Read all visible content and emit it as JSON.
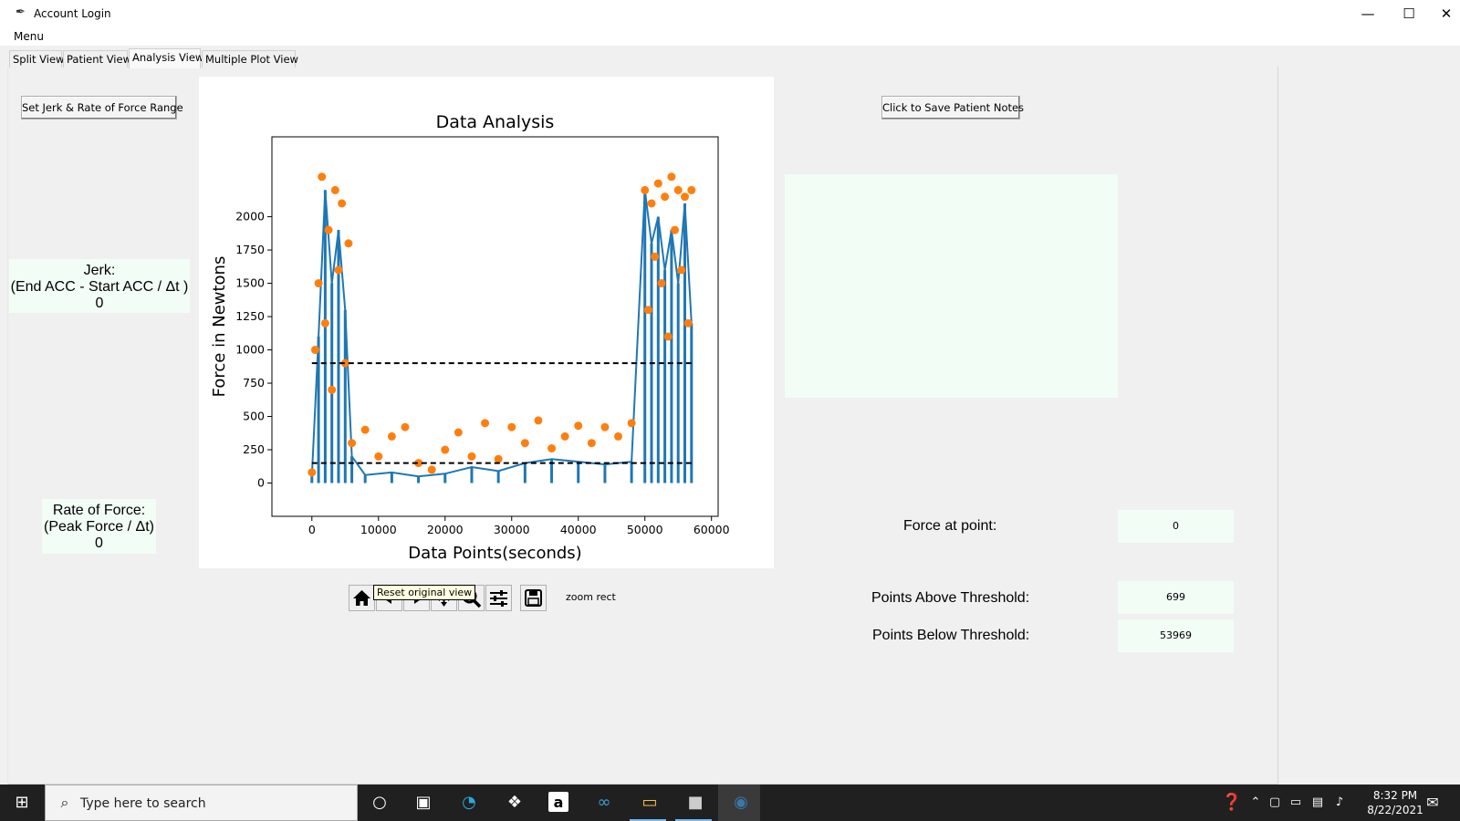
{
  "window": {
    "title": "Account Login",
    "minimize": "—",
    "maximize": "☐",
    "close": "✕"
  },
  "menu": {
    "label": "Menu"
  },
  "tabs": [
    {
      "label": "Split View"
    },
    {
      "label": "Patient View"
    },
    {
      "label": "Analysis View"
    },
    {
      "label": "Multiple Plot View"
    }
  ],
  "buttons": {
    "set_range": "Set Jerk & Rate of Force Range",
    "save_notes": "Click to Save Patient Notes"
  },
  "jerk": {
    "line1": "Jerk:",
    "line2": "(End ACC - Start ACC / Δt )",
    "value": "0"
  },
  "rate_of_force": {
    "line1": "Rate of Force:",
    "line2": "(Peak Force / Δt)",
    "value": "0"
  },
  "stats": {
    "force_at_point_label": "Force at point:",
    "force_at_point_value": "0",
    "above_label": "Points Above Threshold:",
    "above_value": "699",
    "below_label": "Points Below Threshold:",
    "below_value": "53969"
  },
  "toolbar": {
    "tooltip": "Reset original view",
    "status": "zoom rect",
    "icons": [
      "home-icon",
      "back-icon",
      "forward-icon",
      "pan-icon",
      "zoom-icon",
      "configure-icon",
      "save-icon"
    ]
  },
  "chart_data": {
    "type": "scatter",
    "title": "Data Analysis",
    "xlabel": "Data Points(seconds)",
    "ylabel": "Force in Newtons",
    "xlim": [
      -6000,
      61000
    ],
    "ylim": [
      -250,
      2600
    ],
    "xticks": [
      0,
      10000,
      20000,
      30000,
      40000,
      50000,
      60000
    ],
    "yticks": [
      0,
      250,
      500,
      750,
      1000,
      1250,
      1500,
      1750,
      2000
    ],
    "thresholds": [
      900,
      150
    ],
    "series": [
      {
        "color": "#1f77b4",
        "style": "line",
        "x": [
          0,
          1000,
          2000,
          3000,
          4000,
          5000,
          6000,
          8000,
          12000,
          16000,
          20000,
          24000,
          28000,
          32000,
          36000,
          40000,
          44000,
          48000,
          50000,
          51000,
          52000,
          53000,
          54000,
          55000,
          56000,
          57000
        ],
        "y": [
          50,
          1100,
          2200,
          1500,
          1900,
          1300,
          200,
          60,
          80,
          50,
          70,
          120,
          90,
          150,
          180,
          160,
          140,
          160,
          2200,
          1800,
          2000,
          1600,
          1900,
          1500,
          2100,
          1200
        ]
      },
      {
        "color": "#ff7f0e",
        "style": "points",
        "x": [
          0,
          500,
          1000,
          1500,
          2000,
          2500,
          3000,
          3500,
          4000,
          4500,
          5000,
          5500,
          6000,
          8000,
          10000,
          12000,
          14000,
          16000,
          18000,
          20000,
          22000,
          24000,
          26000,
          28000,
          30000,
          32000,
          34000,
          36000,
          38000,
          40000,
          42000,
          44000,
          46000,
          48000,
          50000,
          50500,
          51000,
          51500,
          52000,
          52500,
          53000,
          53500,
          54000,
          54500,
          55000,
          55500,
          56000,
          56500,
          57000
        ],
        "y": [
          80,
          1000,
          1500,
          2300,
          1200,
          1900,
          700,
          2200,
          1600,
          2100,
          900,
          1800,
          300,
          400,
          200,
          350,
          420,
          150,
          100,
          250,
          380,
          200,
          450,
          180,
          420,
          300,
          470,
          260,
          350,
          430,
          300,
          420,
          350,
          450,
          2200,
          1300,
          2100,
          1700,
          2250,
          1500,
          2150,
          1100,
          2300,
          1900,
          2200,
          1600,
          2150,
          1200,
          2200
        ]
      }
    ]
  }
}
